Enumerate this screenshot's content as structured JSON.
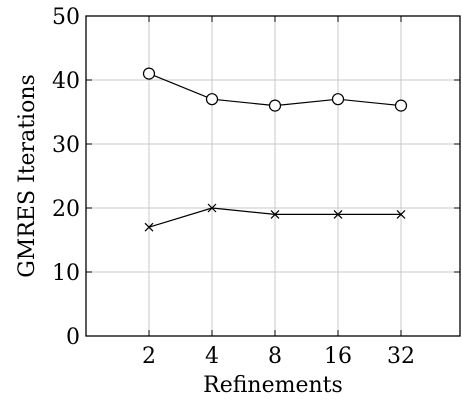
{
  "chart_data": {
    "type": "line",
    "title": "",
    "xlabel": "Refinements",
    "ylabel": "GMRES Iterations",
    "categories": [
      "2",
      "4",
      "8",
      "16",
      "32"
    ],
    "ylim": [
      0,
      50
    ],
    "yticks": [
      "0",
      "10",
      "20",
      "30",
      "40",
      "50"
    ],
    "grid": true,
    "legend": "none",
    "series": [
      {
        "marker": "circle",
        "values": [
          41,
          37,
          36,
          37,
          36
        ]
      },
      {
        "marker": "cross",
        "values": [
          17,
          20,
          19,
          19,
          19
        ]
      }
    ],
    "colors": {
      "axis": "#000000",
      "grid": "#c8c8c8",
      "series": "#000000"
    }
  }
}
